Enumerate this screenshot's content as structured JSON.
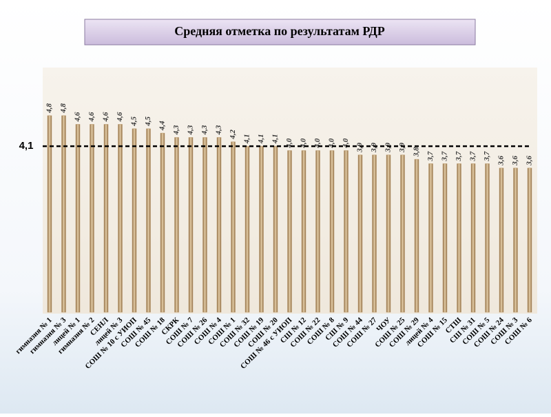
{
  "chart_data": {
    "type": "bar",
    "title": "Средняя отметка по результатам РДР",
    "categories": [
      "гимназия № 1",
      "гимназия № 3",
      "лицей № 1",
      "гимназия № 2",
      "СЕНЛ",
      "лицей № 3",
      "СОШ № 10 с УИОП",
      "СОШ № 45",
      "СОШ № 18",
      "СКРК",
      "СОШ № 7",
      "СОШ № 26",
      "СОШ № 4",
      "СОШ № 1",
      "СОШ № 32",
      "СОШ № 19",
      "СОШ № 20",
      "СОШ № 46 с УИОП",
      "СШ № 12",
      "СОШ № 22",
      "СОШ № 8",
      "СШ № 9",
      "СОШ № 44",
      "СОШ № 27",
      "ЧОУ",
      "СОШ № 25",
      "СОШ № 29",
      "лицей № 4",
      "СОШ № 15",
      "СТШ",
      "СШ № 31",
      "СОШ № 5",
      "СОШ № 24",
      "СОШ № 3",
      "СОШ № 6"
    ],
    "values": [
      4.8,
      4.8,
      4.6,
      4.6,
      4.6,
      4.6,
      4.5,
      4.5,
      4.4,
      4.3,
      4.3,
      4.3,
      4.3,
      4.2,
      4.1,
      4.1,
      4.1,
      4.0,
      4.0,
      4.0,
      4.0,
      4.0,
      3.9,
      3.9,
      3.9,
      3.9,
      3.8,
      3.7,
      3.7,
      3.7,
      3.7,
      3.7,
      3.6,
      3.6,
      3.6
    ],
    "value_labels": [
      "4,8",
      "4,8",
      "4,6",
      "4,6",
      "4,6",
      "4,6",
      "4,5",
      "4,5",
      "4,4",
      "4,3",
      "4,3",
      "4,3",
      "4,3",
      "4,2",
      "4,1",
      "4,1",
      "4,1",
      "4,0",
      "4,0",
      "4,0",
      "4,0",
      "4,0",
      "3,9",
      "3,9",
      "3,9",
      "3,9",
      "3,8",
      "3,7",
      "3,7",
      "3,7",
      "3,7",
      "3,7",
      "3,6",
      "3,6",
      "3,6"
    ],
    "color": "#b8976a",
    "reference_line": {
      "value": 4.1,
      "label": "4,1"
    },
    "ylim": [
      0.3,
      5.9
    ]
  }
}
